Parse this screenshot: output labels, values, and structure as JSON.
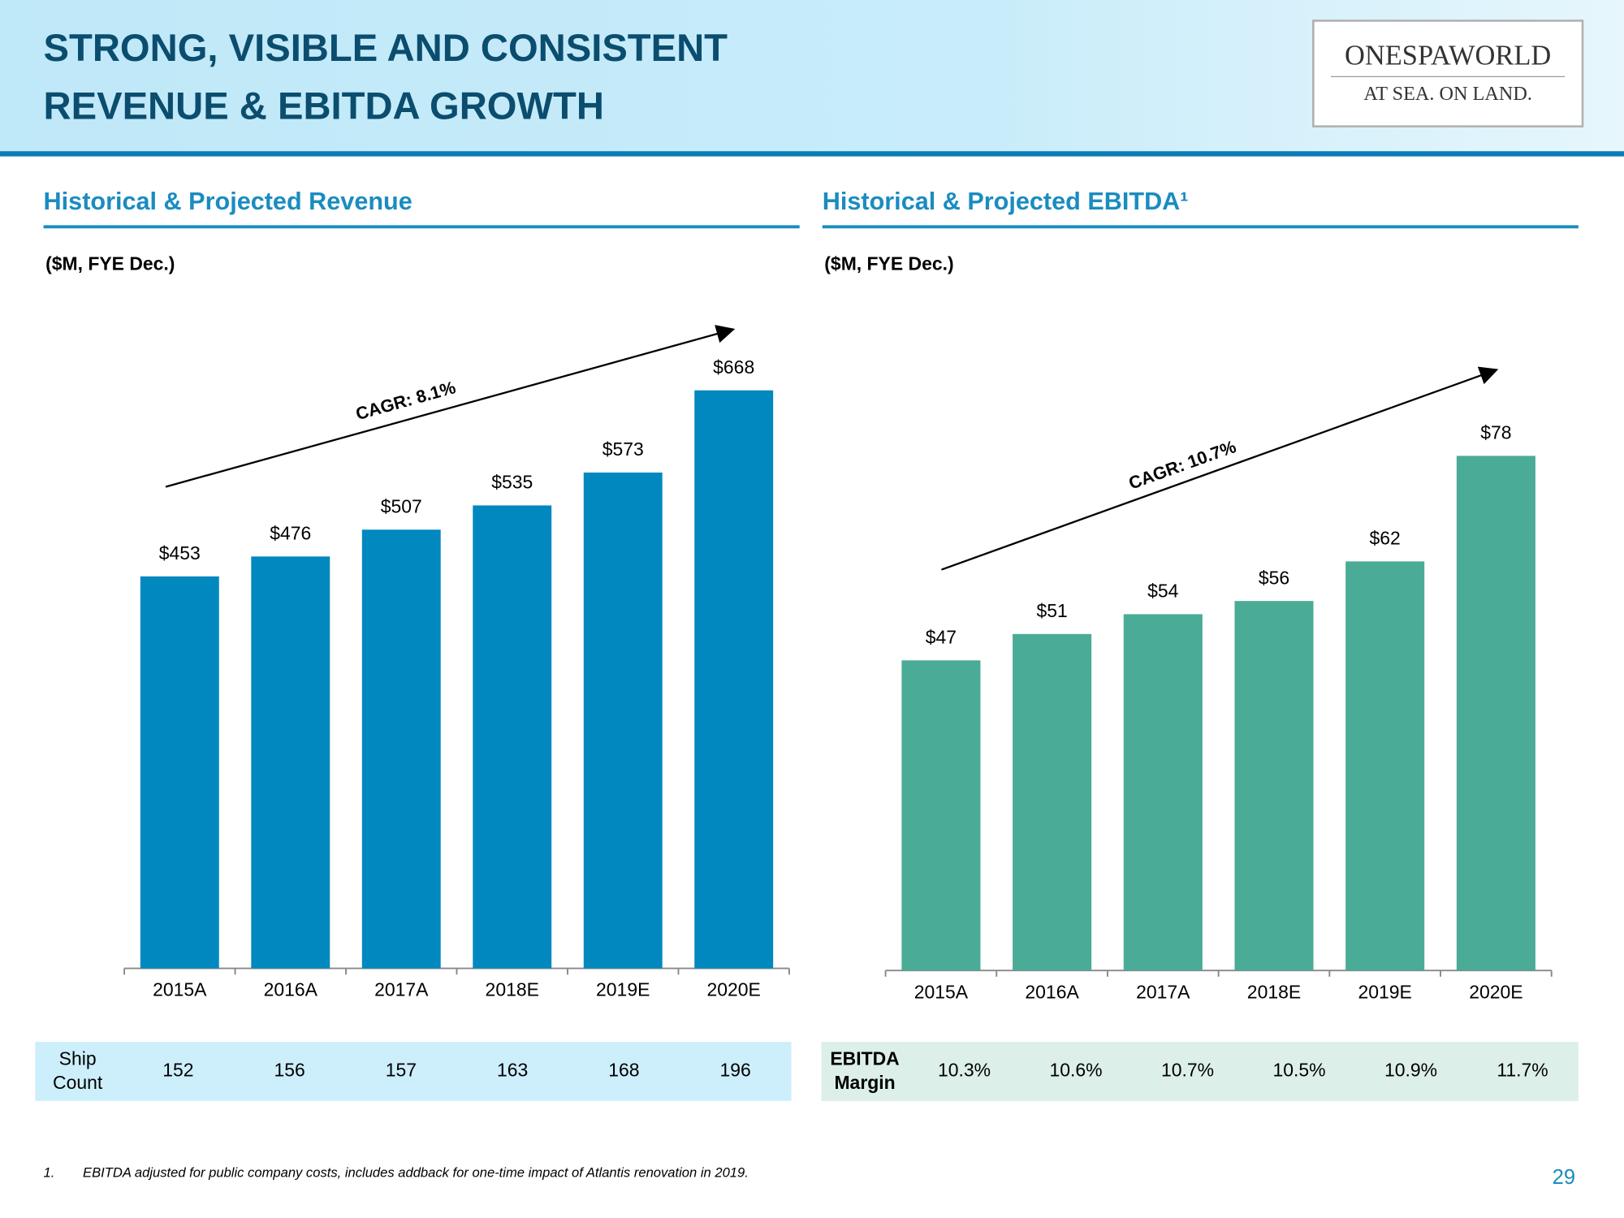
{
  "header": {
    "title_lines": [
      "STRONG, VISIBLE AND CONSISTENT",
      "REVENUE & EBITDA GROWTH"
    ],
    "logo": {
      "name": "ONESPAWORLD",
      "tagline": "AT SEA. ON LAND."
    }
  },
  "chart_data": [
    {
      "type": "bar",
      "title": "Historical & Projected Revenue",
      "subtitle": "($M, FYE Dec.)",
      "annotation": "CAGR: 8.1%",
      "categories": [
        "2015A",
        "2016A",
        "2017A",
        "2018E",
        "2019E",
        "2020E"
      ],
      "values": [
        453,
        476,
        507,
        535,
        573,
        668
      ],
      "value_labels": [
        "$453",
        "$476",
        "$507",
        "$535",
        "$573",
        "$668"
      ],
      "color": "#0088bf",
      "ylim": [
        0,
        760
      ],
      "table": {
        "label": [
          "Ship",
          "Count"
        ],
        "cells": [
          152,
          156,
          157,
          163,
          168,
          196
        ]
      }
    },
    {
      "type": "bar",
      "title": "Historical & Projected EBITDA¹",
      "subtitle": "($M, FYE Dec.)",
      "annotation": "CAGR: 10.7%",
      "categories": [
        "2015A",
        "2016A",
        "2017A",
        "2018E",
        "2019E",
        "2020E"
      ],
      "values": [
        47,
        51,
        54,
        56,
        62,
        78
      ],
      "value_labels": [
        "$47",
        "$51",
        "$54",
        "$56",
        "$62",
        "$78"
      ],
      "color": "#4aab96",
      "ylim": [
        0,
        100
      ],
      "table": {
        "label": [
          "EBITDA",
          "Margin"
        ],
        "cells": [
          "10.3%",
          "10.6%",
          "10.7%",
          "10.5%",
          "10.9%",
          "11.7%"
        ]
      }
    }
  ],
  "footnote": {
    "number": "1.",
    "text": "EBITDA adjusted for public company costs, includes addback for one-time impact of Atlantis renovation in 2019."
  },
  "page_number": "29"
}
